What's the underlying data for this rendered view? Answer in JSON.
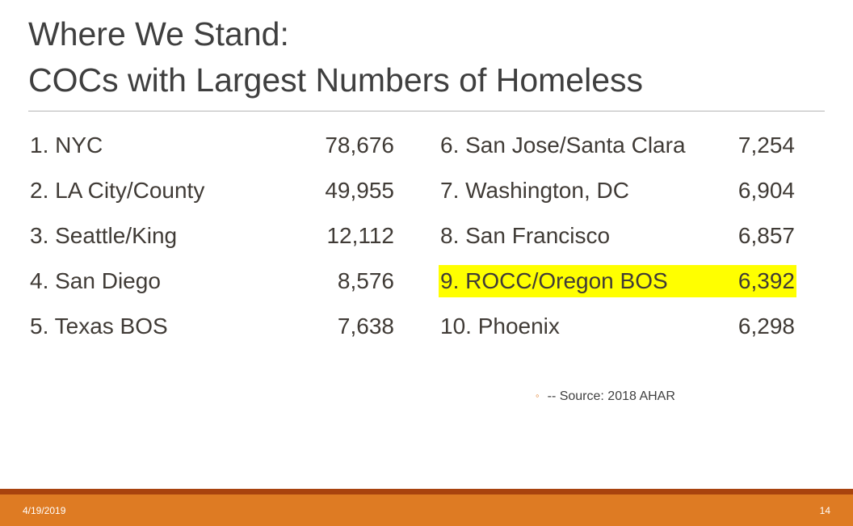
{
  "slide": {
    "title": {
      "line1": "Where We Stand:",
      "line2": "COCs with Largest Numbers of Homeless"
    },
    "list_left": [
      {
        "label": "1. NYC",
        "value": "78,676"
      },
      {
        "label": "2. LA City/County",
        "value": "49,955"
      },
      {
        "label": "3. Seattle/King",
        "value": "12,112"
      },
      {
        "label": "4. San Diego",
        "value": "8,576"
      },
      {
        "label": "5. Texas BOS",
        "value": "7,638"
      }
    ],
    "list_right": [
      {
        "label": "6. San Jose/Santa Clara",
        "value": "7,254"
      },
      {
        "label": "7. Washington, DC",
        "value": "6,904"
      },
      {
        "label": "8. San Francisco",
        "value": "6,857"
      },
      {
        "label": "9. ROCC/Oregon BOS",
        "value": "6,392",
        "highlighted": true
      },
      {
        "label": "10. Phoenix",
        "value": "6,298"
      }
    ],
    "source": {
      "bullet": "◦",
      "text": "-- Source: 2018 AHAR"
    },
    "footer": {
      "date": "4/19/2019",
      "slide_number": "14"
    },
    "colors": {
      "highlight": "#ffff00",
      "accent": "#e07b27",
      "footer_top": "#a8430e",
      "footer_main": "#de7b23"
    }
  }
}
